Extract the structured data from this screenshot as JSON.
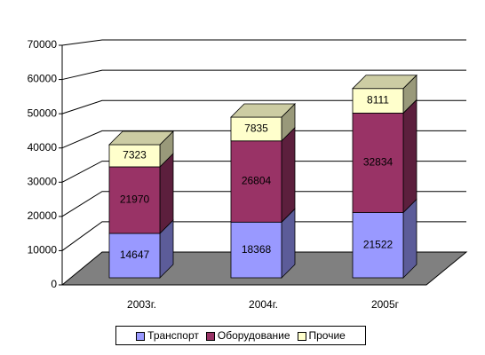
{
  "chart_data": {
    "type": "bar3d_stacked",
    "categories": [
      "2003г.",
      "2004г.",
      "2005г"
    ],
    "series": [
      {
        "name": "Транспорт",
        "color": "#9999ff",
        "values": [
          14647,
          18368,
          21522
        ]
      },
      {
        "name": "Оборудование",
        "color": "#993366",
        "values": [
          21970,
          26804,
          32834
        ]
      },
      {
        "name": "Прочие",
        "color": "#ffffcc",
        "values": [
          7323,
          7835,
          8111
        ]
      }
    ],
    "ylim": [
      0,
      70000
    ],
    "yticks": [
      0,
      10000,
      20000,
      30000,
      40000,
      50000,
      60000,
      70000
    ],
    "grid": true
  }
}
